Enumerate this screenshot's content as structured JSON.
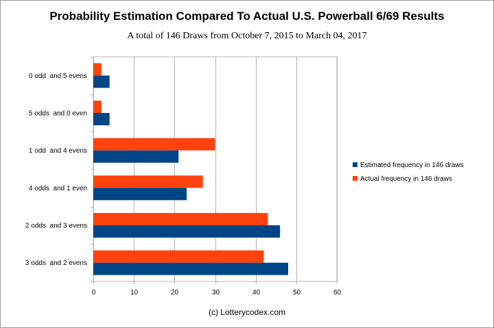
{
  "chart_data": {
    "type": "bar",
    "orientation": "horizontal",
    "title": "Probability Estimation Compared To Actual U.S. Powerball 6/69 Results",
    "subtitle": "A total of 146 Draws from October 7, 2015 to March 04, 2017",
    "credit": "(c) Lotterycodex.com",
    "categories": [
      "0 odd  and 5 evens",
      "5 odds  and 0 even",
      "1 odd  and 4 evens",
      "4 odds  and 1 even",
      "2 odds  and 3 evens",
      "3 odds  and 2 evens"
    ],
    "series": [
      {
        "name": "Estimated frequency in 146 draws",
        "color": "#004586",
        "values": [
          4,
          4,
          21,
          23,
          46,
          48
        ]
      },
      {
        "name": "Actual frequency in 146 draws",
        "color": "#ff420e",
        "values": [
          2,
          2,
          30,
          27,
          43,
          42
        ]
      }
    ],
    "xlim": [
      0,
      60
    ],
    "xticks": [
      0,
      10,
      20,
      30,
      40,
      50,
      60
    ],
    "grid": true,
    "legend_position": "right"
  }
}
